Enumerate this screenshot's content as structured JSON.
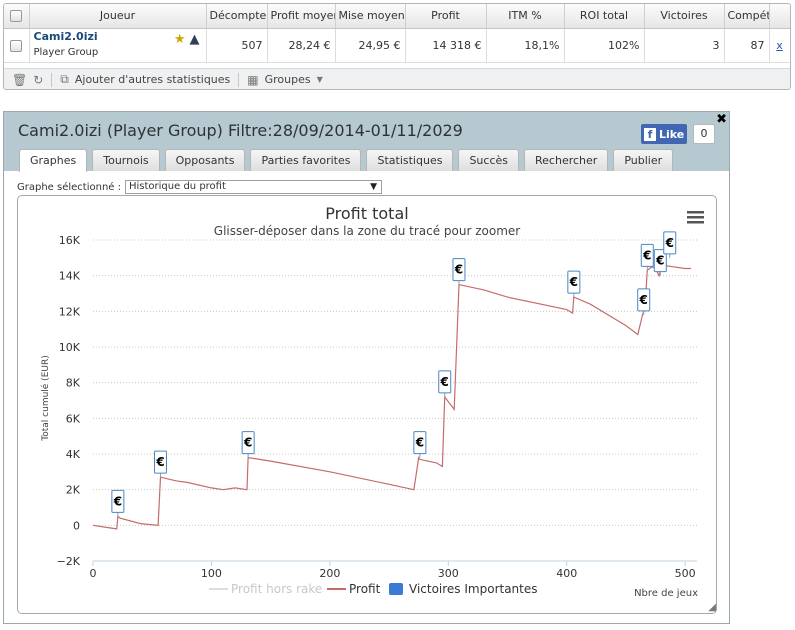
{
  "stats_table": {
    "headers": [
      "Joueur",
      "Décompte",
      "Profit moyen",
      "Mise moyen",
      "Profit",
      "ITM %",
      "ROI total",
      "Victoires",
      "Compét"
    ],
    "row": {
      "player_name": "Cami2.0izi",
      "player_group": "Player Group",
      "count": "507",
      "avg_profit": "28,24 €",
      "avg_stake": "24,95 €",
      "profit": "14 318 €",
      "itm": "18,1%",
      "roi": "102%",
      "wins": "3",
      "entries": "87",
      "remove": "x"
    },
    "toolbar": {
      "add_stats": "Ajouter d'autres statistiques",
      "groups": "Groupes"
    }
  },
  "dialog": {
    "title": "Cami2.0izi (Player Group) Filtre:28/09/2014-01/11/2029",
    "like_label": "Like",
    "like_count": "0",
    "tabs": [
      "Graphes",
      "Tournois",
      "Opposants",
      "Parties favorites",
      "Statistiques",
      "Succès",
      "Rechercher",
      "Publier"
    ],
    "active_tab": 0,
    "graph_select_label": "Graphe sélectionné :",
    "graph_select_value": "Historique du profit"
  },
  "chart_data": {
    "type": "line",
    "title": "Profit total",
    "subtitle": "Glisser-déposer dans la zone du tracé pour zoomer",
    "xlabel": "Nbre de jeux",
    "ylabel": "Total cumulé (EUR)",
    "xlim": [
      0,
      510
    ],
    "ylim": [
      -2000,
      16000
    ],
    "xticks": [
      0,
      100,
      200,
      300,
      400,
      500
    ],
    "yticks": [
      -2000,
      0,
      2000,
      4000,
      6000,
      8000,
      10000,
      12000,
      14000,
      16000
    ],
    "ytick_labels": [
      "−2K",
      "0",
      "2K",
      "4K",
      "6K",
      "8K",
      "10K",
      "12K",
      "14K",
      "16K"
    ],
    "grid": true,
    "legend": [
      "Profit hors rake",
      "Profit",
      "Victoires Importantes"
    ],
    "series": [
      {
        "name": "Profit",
        "color": "#c56b6b",
        "x": [
          0,
          10,
          20,
          21,
          23,
          40,
          55,
          57,
          70,
          80,
          100,
          110,
          120,
          130,
          131,
          150,
          200,
          250,
          271,
          275,
          276,
          290,
          295,
          297,
          305,
          309,
          330,
          350,
          400,
          405,
          406,
          420,
          450,
          460,
          464,
          466,
          468,
          472,
          475,
          478,
          480,
          490,
          500,
          505
        ],
        "y": [
          0,
          -100,
          -200,
          500,
          400,
          100,
          0,
          2700,
          2500,
          2400,
          2100,
          2000,
          2100,
          2000,
          3800,
          3600,
          3000,
          2300,
          2000,
          3800,
          3700,
          3500,
          3300,
          7200,
          6500,
          13500,
          13200,
          12800,
          12100,
          11900,
          12800,
          12400,
          11200,
          10700,
          11800,
          12200,
          14300,
          14500,
          14400,
          14000,
          14600,
          14500,
          14400,
          14400
        ]
      }
    ],
    "markers": {
      "name": "Victoires Importantes",
      "label": "€",
      "x": [
        21,
        57,
        131,
        276,
        297,
        309,
        406,
        465,
        468,
        479,
        487
      ],
      "y": [
        500,
        2700,
        3800,
        3800,
        7200,
        13500,
        12800,
        11800,
        14300,
        14000,
        15000
      ]
    }
  }
}
